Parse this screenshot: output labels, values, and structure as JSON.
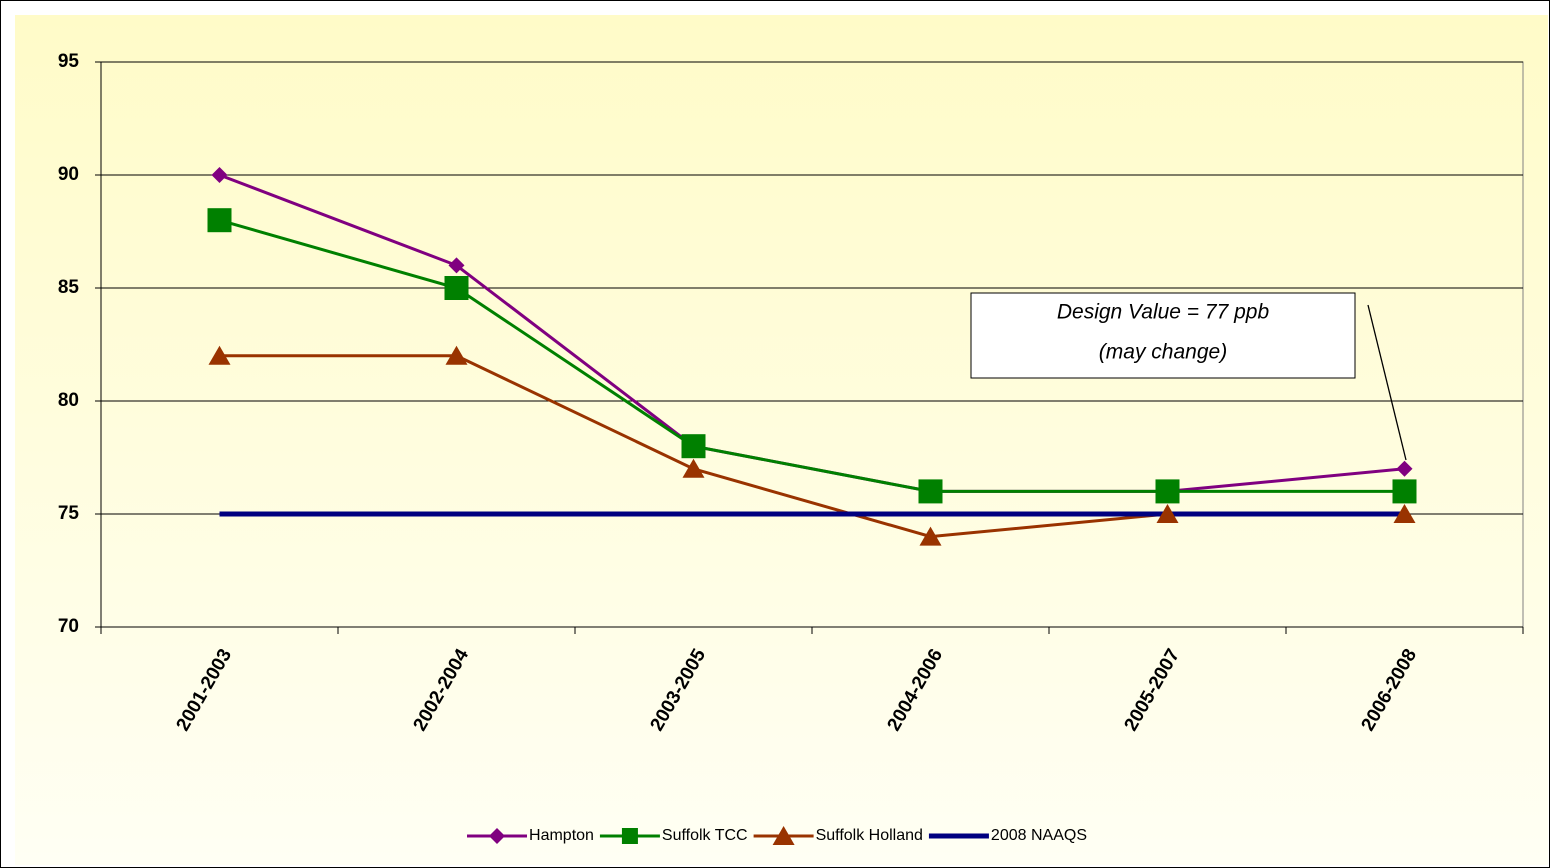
{
  "chart_data": {
    "type": "line",
    "categories": [
      "2001-2003",
      "2002-2004",
      "2003-2005",
      "2004-2006",
      "2005-2007",
      "2006-2008"
    ],
    "series": [
      {
        "name": "Hampton",
        "color": "#800080",
        "marker": "diamond",
        "values": [
          90,
          86,
          78,
          76,
          76,
          77
        ]
      },
      {
        "name": "Suffolk TCC",
        "color": "#008000",
        "marker": "square",
        "values": [
          88,
          85,
          78,
          76,
          76,
          76
        ]
      },
      {
        "name": "Suffolk Holland",
        "color": "#993300",
        "marker": "triangle",
        "values": [
          82,
          82,
          77,
          74,
          75,
          75
        ]
      },
      {
        "name": "2008 NAAQS",
        "color": "#000080",
        "values": [
          75,
          75,
          75,
          75,
          75,
          75
        ]
      }
    ],
    "ylim": [
      70,
      95
    ],
    "yticks": [
      70,
      75,
      80,
      85,
      90,
      95
    ],
    "grid": true,
    "annotation": [
      "Design Value = 77 ppb",
      "(may change)"
    ],
    "legend": "bottom"
  }
}
